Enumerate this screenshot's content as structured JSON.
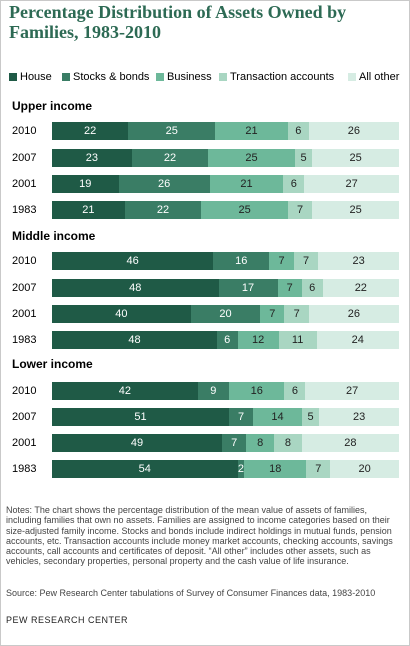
{
  "title": "Percentage Distribution of Assets Owned by Families, 1983-2010",
  "notes": "Notes: The chart shows the percentage distribution of the mean value of assets of families, including families that own no assets. Families are assigned to income categories based on their size-adjusted family income. Stocks and bonds include indirect holdings in mutual funds, pension accounts, etc. Transaction accounts include money market accounts, checking accounts, savings accounts, call accounts and certificates of deposit. “All other” includes other assets, such as vehicles, secondary properties, personal property and the cash value of life insurance.",
  "source": "Source: Pew Research Center tabulations of Survey of Consumer Finances data, 1983-2010",
  "credit": "PEW RESEARCH CENTER",
  "colors": {
    "House": "#1f5a46",
    "Stocks & bonds": "#3a7d65",
    "Business": "#6db89a",
    "Transaction accounts": "#a9d6c2",
    "All other": "#d6ece3"
  },
  "chart_data": {
    "type": "bar",
    "orientation": "horizontal",
    "stacked": true,
    "title": "Percentage Distribution of Assets Owned by Families, 1983-2010",
    "legend": [
      "House",
      "Stocks & bonds",
      "Business",
      "Transaction accounts",
      "All other"
    ],
    "legend_position": "top",
    "groups": [
      {
        "name": "Upper income",
        "rows": [
          {
            "year": "2010",
            "values": [
              22,
              25,
              21,
              6,
              26
            ]
          },
          {
            "year": "2007",
            "values": [
              23,
              22,
              25,
              5,
              25
            ]
          },
          {
            "year": "2001",
            "values": [
              19,
              26,
              21,
              6,
              27
            ]
          },
          {
            "year": "1983",
            "values": [
              21,
              22,
              25,
              7,
              25
            ]
          }
        ]
      },
      {
        "name": "Middle income",
        "rows": [
          {
            "year": "2010",
            "values": [
              46,
              16,
              7,
              7,
              23
            ]
          },
          {
            "year": "2007",
            "values": [
              48,
              17,
              7,
              6,
              22
            ]
          },
          {
            "year": "2001",
            "values": [
              40,
              20,
              7,
              7,
              26
            ]
          },
          {
            "year": "1983",
            "values": [
              48,
              6,
              12,
              11,
              24
            ]
          }
        ]
      },
      {
        "name": "Lower income",
        "rows": [
          {
            "year": "2010",
            "values": [
              42,
              9,
              16,
              6,
              27
            ]
          },
          {
            "year": "2007",
            "values": [
              51,
              7,
              14,
              5,
              23
            ]
          },
          {
            "year": "2001",
            "values": [
              49,
              7,
              8,
              8,
              28
            ]
          },
          {
            "year": "1983",
            "values": [
              54,
              2,
              18,
              7,
              20
            ]
          }
        ]
      }
    ]
  }
}
